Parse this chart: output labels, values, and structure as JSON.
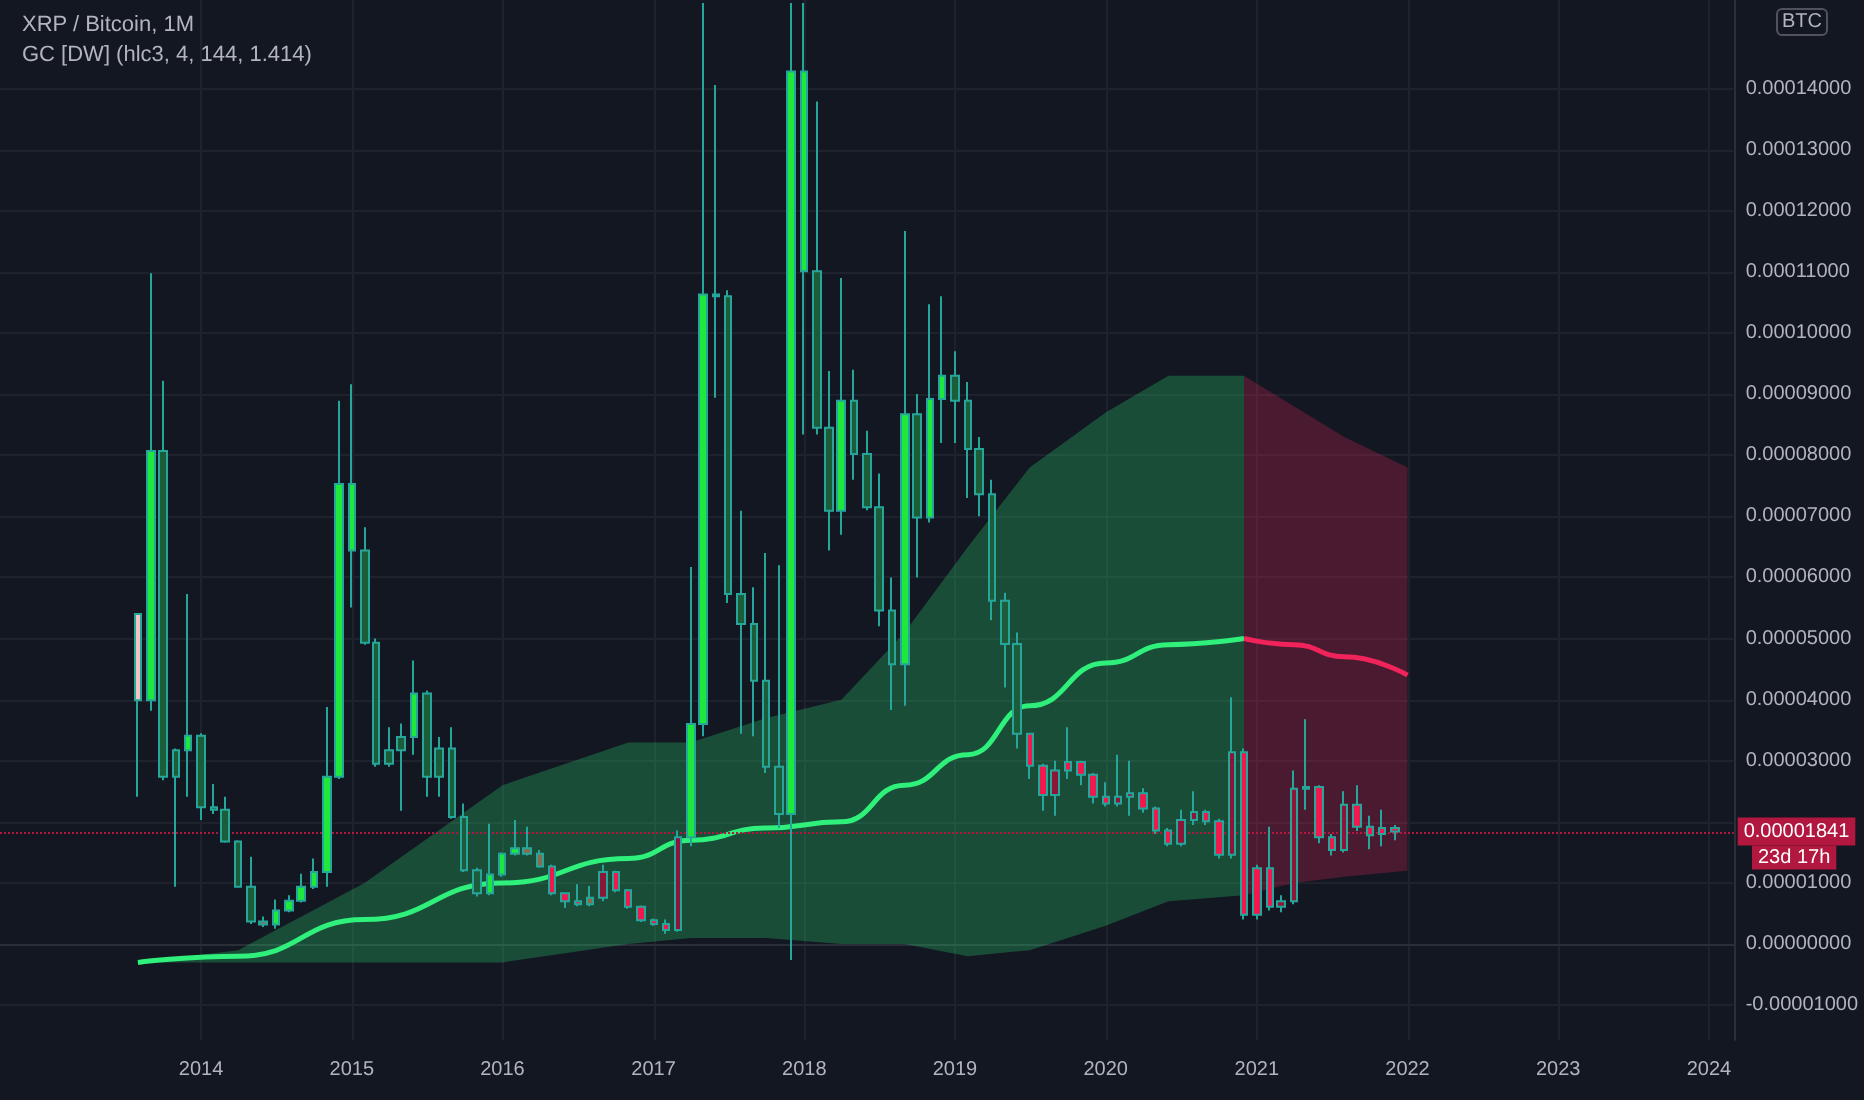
{
  "chart_data": {
    "type": "candlestick",
    "title": "XRP / Bitcoin, 1M",
    "subtitle": "GC [DW] (hlc3, 4, 144, 1.414)",
    "ylabel": "BTC",
    "x": [
      "2013-08",
      "2013-09",
      "2013-10",
      "2013-11",
      "2013-12",
      "2014-01",
      "2014-02",
      "2014-03",
      "2014-04",
      "2014-05",
      "2014-06",
      "2014-07",
      "2014-08",
      "2014-09",
      "2014-10",
      "2014-11",
      "2014-12",
      "2015-01",
      "2015-02",
      "2015-03",
      "2015-04",
      "2015-05",
      "2015-06",
      "2015-07",
      "2015-08",
      "2015-09",
      "2015-10",
      "2015-11",
      "2015-12",
      "2016-01",
      "2016-02",
      "2016-03",
      "2016-04",
      "2016-05",
      "2016-06",
      "2016-07",
      "2016-08",
      "2016-09",
      "2016-10",
      "2016-11",
      "2016-12",
      "2017-01",
      "2017-02",
      "2017-03",
      "2017-04",
      "2017-05",
      "2017-06",
      "2017-07",
      "2017-08",
      "2017-09",
      "2017-10",
      "2017-11",
      "2017-12",
      "2018-01",
      "2018-02",
      "2018-03",
      "2018-04",
      "2018-05",
      "2018-06",
      "2018-07",
      "2018-08",
      "2018-09",
      "2018-10",
      "2018-11",
      "2018-12",
      "2019-01",
      "2019-02",
      "2019-03",
      "2019-04",
      "2019-05",
      "2019-06",
      "2019-07",
      "2019-08",
      "2019-09",
      "2019-10",
      "2019-11",
      "2019-12",
      "2020-01",
      "2020-02",
      "2020-03",
      "2020-04",
      "2020-05",
      "2020-06",
      "2020-07",
      "2020-08",
      "2020-09",
      "2020-10",
      "2020-11",
      "2020-12",
      "2021-01",
      "2021-02",
      "2021-03",
      "2021-04",
      "2021-05",
      "2021-06",
      "2021-07",
      "2021-08",
      "2021-09",
      "2021-10",
      "2021-11",
      "2021-12"
    ],
    "ohlc": [
      [
        5.4e-05,
        5.42e-05,
        2.41e-05,
        3.99e-05
      ],
      [
        3.99e-05,
        0.0001098,
        3.82e-05,
        8.07e-05
      ],
      [
        8.07e-05,
        9.22e-05,
        2.68e-05,
        2.74e-05
      ],
      [
        3.17e-05,
        3.2e-05,
        9.4e-06,
        2.74e-05
      ],
      [
        3.17e-05,
        5.73e-05,
        2.41e-05,
        3.41e-05
      ],
      [
        3.41e-05,
        3.45e-05,
        2.03e-05,
        2.24e-05
      ],
      [
        2.24e-05,
        2.62e-05,
        2.13e-05,
        2.2e-05
      ],
      [
        2.2e-05,
        2.41e-05,
        1.66e-05,
        1.68e-05
      ],
      [
        1.68e-05,
        1.7e-05,
        9.2e-06,
        9.4e-06
      ],
      [
        9.4e-06,
        1.43e-05,
        3.3e-06,
        3.7e-06
      ],
      [
        3.7e-06,
        4.5e-06,
        2.8e-06,
        3.2e-06
      ],
      [
        3.2e-06,
        7.3e-06,
        2.5e-06,
        5.5e-06
      ],
      [
        5.5e-06,
        8e-06,
        5.2e-06,
        7.1e-06
      ],
      [
        7.1e-06,
        1.15e-05,
        6.8e-06,
        9.4e-06
      ],
      [
        9.4e-06,
        1.4e-05,
        9e-06,
        1.18e-05
      ],
      [
        1.18e-05,
        3.88e-05,
        9.4e-06,
        2.74e-05
      ],
      [
        2.74e-05,
        8.89e-05,
        2.7e-05,
        7.53e-05
      ],
      [
        6.44e-05,
        9.16e-05,
        5.51e-05,
        7.53e-05
      ],
      [
        6.44e-05,
        6.82e-05,
        4.9e-05,
        4.93e-05
      ],
      [
        4.93e-05,
        5e-05,
        2.9e-05,
        2.95e-05
      ],
      [
        3.17e-05,
        3.55e-05,
        2.9e-05,
        2.95e-05
      ],
      [
        3.39e-05,
        3.61e-05,
        2.18e-05,
        3.17e-05
      ],
      [
        3.39e-05,
        4.64e-05,
        3.1e-05,
        4.1e-05
      ],
      [
        4.1e-05,
        4.15e-05,
        2.41e-05,
        2.74e-05
      ],
      [
        3.2e-05,
        3.39e-05,
        2.41e-05,
        2.74e-05
      ],
      [
        3.2e-05,
        3.55e-05,
        2.05e-05,
        2.08e-05
      ],
      [
        2.08e-05,
        2.3e-05,
        1.18e-05,
        1.21e-05
      ],
      [
        1.21e-05,
        1.25e-05,
        7.8e-06,
        8.3e-06
      ],
      [
        8.3e-06,
        1.97e-05,
        8e-06,
        1.14e-05
      ],
      [
        1.14e-05,
        1.5e-05,
        1.1e-05,
        1.48e-05
      ],
      [
        1.48e-05,
        2.03e-05,
        1.45e-05,
        1.57e-05
      ],
      [
        1.57e-05,
        1.92e-05,
        1.45e-05,
        1.48e-05
      ],
      [
        1.48e-05,
        1.54e-05,
        1.25e-05,
        1.27e-05
      ],
      [
        1.27e-05,
        1.3e-05,
        8e-06,
        8.3e-06
      ],
      [
        8.3e-06,
        8.5e-06,
        5.9e-06,
        7e-06
      ],
      [
        7e-06,
        9.8e-06,
        6.2e-06,
        6.5e-06
      ],
      [
        7.6e-06,
        9.5e-06,
        6.2e-06,
        6.5e-06
      ],
      [
        7.6e-06,
        1.3e-05,
        7e-06,
        1.18e-05
      ],
      [
        1.18e-05,
        1.2e-05,
        8.5e-06,
        8.8e-06
      ],
      [
        8.8e-06,
        9e-06,
        5.8e-06,
        6.1e-06
      ],
      [
        6.1e-06,
        6.3e-06,
        3.6e-06,
        3.9e-06
      ],
      [
        3.9e-06,
        4.2e-06,
        3e-06,
        3.3e-06
      ],
      [
        3.3e-06,
        4e-06,
        1.7e-06,
        2.3e-06
      ],
      [
        2.3e-06,
        1.86e-05,
        2e-06,
        1.75e-05
      ],
      [
        1.75e-05,
        6.17e-05,
        1.6e-05,
        3.6e-05
      ],
      [
        3.6e-05,
        0.000154,
        3.4e-05,
        0.0001063
      ],
      [
        0.0001063,
        0.0001406,
        8.94e-05,
        0.000106
      ],
      [
        0.000106,
        0.000107,
        5.58e-05,
        5.73e-05
      ],
      [
        5.73e-05,
        7.09e-05,
        3.44e-05,
        5.24e-05
      ],
      [
        5.24e-05,
        5.84e-05,
        3.4e-05,
        4.31e-05
      ],
      [
        4.31e-05,
        6.4e-05,
        2.8e-05,
        2.9e-05
      ],
      [
        2.9e-05,
        6.2e-05,
        1.9e-05,
        2.13e-05
      ],
      [
        2.13e-05,
        0.000154,
        -2.6e-06,
        0.0001428
      ],
      [
        0.0001101,
        0.000154,
        8.34e-05,
        0.0001428
      ],
      [
        0.0001101,
        0.0001379,
        8.34e-05,
        8.45e-05
      ],
      [
        8.45e-05,
        9.38e-05,
        6.44e-05,
        7.09e-05
      ],
      [
        7.09e-05,
        0.000109,
        6.7e-05,
        8.89e-05
      ],
      [
        8.89e-05,
        9.4e-05,
        7.6e-05,
        8.02e-05
      ],
      [
        8.02e-05,
        8.4e-05,
        7.1e-05,
        7.15e-05
      ],
      [
        7.15e-05,
        7.7e-05,
        5.2e-05,
        5.46e-05
      ],
      [
        5.46e-05,
        6e-05,
        3.83e-05,
        4.58e-05
      ],
      [
        4.58e-05,
        0.0001167,
        3.9e-05,
        8.67e-05
      ],
      [
        8.67e-05,
        9e-05,
        6e-05,
        6.98e-05
      ],
      [
        6.98e-05,
        0.0001047,
        6.9e-05,
        8.92e-05
      ],
      [
        8.92e-05,
        0.000106,
        8.2e-05,
        9.3e-05
      ],
      [
        9.3e-05,
        9.7e-05,
        8.2e-05,
        8.89e-05
      ],
      [
        8.89e-05,
        9.2e-05,
        7.3e-05,
        8.1e-05
      ],
      [
        8.1e-05,
        8.3e-05,
        7e-05,
        7.36e-05
      ],
      [
        7.36e-05,
        7.6e-05,
        5.3e-05,
        5.62e-05
      ],
      [
        5.62e-05,
        5.75e-05,
        4.2e-05,
        4.91e-05
      ],
      [
        4.91e-05,
        5.1e-05,
        3.2e-05,
        3.44e-05
      ],
      [
        3.44e-05,
        3.44e-05,
        2.7e-05,
        2.92e-05
      ],
      [
        2.92e-05,
        2.95e-05,
        2.18e-05,
        2.44e-05
      ],
      [
        2.44e-05,
        3e-05,
        2.1e-05,
        2.84e-05
      ],
      [
        2.98e-05,
        3.55e-05,
        2.7e-05,
        2.84e-05
      ],
      [
        2.98e-05,
        3e-05,
        2.6e-05,
        2.77e-05
      ],
      [
        2.77e-05,
        2.8e-05,
        2.3e-05,
        2.41e-05
      ],
      [
        2.41e-05,
        2.65e-05,
        2.25e-05,
        2.3e-05
      ],
      [
        2.3e-05,
        3.1e-05,
        2.25e-05,
        2.41e-05
      ],
      [
        2.41e-05,
        3e-05,
        2.1e-05,
        2.47e-05
      ],
      [
        2.47e-05,
        2.55e-05,
        2.15e-05,
        2.22e-05
      ],
      [
        2.22e-05,
        2.25e-05,
        1.8e-05,
        1.86e-05
      ],
      [
        1.86e-05,
        1.9e-05,
        1.6e-05,
        1.64e-05
      ],
      [
        1.64e-05,
        2.2e-05,
        1.6e-05,
        2.03e-05
      ],
      [
        2.03e-05,
        2.5e-05,
        1.95e-05,
        2.16e-05
      ],
      [
        2.16e-05,
        2.2e-05,
        1.95e-05,
        2.01e-05
      ],
      [
        2.01e-05,
        2.05e-05,
        1.4e-05,
        1.46e-05
      ],
      [
        1.46e-05,
        4.04e-05,
        1.4e-05,
        3.14e-05
      ],
      [
        3.14e-05,
        3.2e-05,
        4e-06,
        4.8e-06
      ],
      [
        1.24e-05,
        1.3e-05,
        4e-06,
        4.8e-06
      ],
      [
        1.24e-05,
        1.92e-05,
        5.5e-06,
        6.1e-06
      ],
      [
        6.1e-06,
        8e-06,
        5.2e-06,
        7e-06
      ],
      [
        7e-06,
        2.84e-05,
        6.5e-06,
        2.54e-05
      ],
      [
        2.54e-05,
        3.68e-05,
        2.2e-05,
        2.57e-05
      ],
      [
        2.57e-05,
        2.6e-05,
        1.65e-05,
        1.75e-05
      ],
      [
        1.75e-05,
        1.8e-05,
        1.45e-05,
        1.54e-05
      ],
      [
        1.54e-05,
        2.5e-05,
        1.5e-05,
        2.28e-05
      ],
      [
        2.28e-05,
        2.6e-05,
        1.85e-05,
        1.92e-05
      ],
      [
        1.92e-05,
        2.1e-05,
        1.55e-05,
        1.78e-05
      ],
      [
        1.9e-05,
        2.2e-05,
        1.6e-05,
        1.8e-05
      ],
      [
        1.9e-05,
        1.95e-05,
        1.7e-05,
        1.841e-05
      ]
    ],
    "colors": [
      "#f2c4c4",
      "#1ee83c",
      "#1d5c38",
      "#1d5c38",
      "#1ee83c",
      "#1d5c38",
      "#1d5c38",
      "#1d5c38",
      "#1d5c38",
      "#1d5c38",
      "#8a6a4a",
      "#1ee83c",
      "#1ee83c",
      "#1ee83c",
      "#1ee83c",
      "#1ee83c",
      "#1ee83c",
      "#1ee83c",
      "#1d5c38",
      "#1d5c38",
      "#1d5c38",
      "#1d5c38",
      "#1ee83c",
      "#1d5c38",
      "#1d5c38",
      "#1d5c38",
      "#1d5c38",
      "#1d5c38",
      "#1ee83c",
      "#1ee83c",
      "#1ee83c",
      "#8a6a4a",
      "#8a6a4a",
      "#f0184c",
      "#f0184c",
      "#f0184c",
      "#8a6a4a",
      "#8c1538",
      "#f0184c",
      "#f0184c",
      "#f0184c",
      "#f0184c",
      "#f0184c",
      "#8c1538",
      "#1ee83c",
      "#1ee83c",
      "#1d5c38",
      "#1d5c38",
      "#1d5c38",
      "#1d5c38",
      "#1d5c38",
      "#1d5c38",
      "#1ee83c",
      "#1ee83c",
      "#1d5c38",
      "#1d5c38",
      "#1ee83c",
      "#1d5c38",
      "#1d5c38",
      "#1d5c38",
      "#1d5c38",
      "#1ee83c",
      "#1d5c38",
      "#1ee83c",
      "#1ee83c",
      "#1d5c38",
      "#1d5c38",
      "#1d5c38",
      "#1d5c38",
      "#1d5c38",
      "#1d5c38",
      "#f0184c",
      "#f0184c",
      "#8c1538",
      "#f0184c",
      "#f0184c",
      "#f0184c",
      "#f0184c",
      "#8c1538",
      "#8c1538",
      "#f0184c",
      "#f0184c",
      "#f0184c",
      "#8c1538",
      "#8c1538",
      "#f0184c",
      "#f0184c",
      "#8c1538",
      "#f0184c",
      "#f0184c",
      "#f0184c",
      "#8c1538",
      "#8c1538",
      "#8c1538",
      "#f0184c",
      "#f0184c",
      "#8c1538",
      "#f0184c",
      "#f0184c",
      "#f0184c",
      "#f0184c"
    ],
    "series": [
      {
        "type": "line",
        "color": "#2ef07a",
        "x": [
          "2013-08",
          "2014-04",
          "2015-02",
          "2016-01",
          "2016-11",
          "2017-04",
          "2017-10",
          "2018-04",
          "2018-09",
          "2019-02",
          "2019-07",
          "2020-01",
          "2020-06",
          "2020-12"
        ],
        "values": [
          -3e-06,
          -2e-06,
          4e-06,
          1e-05,
          1.4e-05,
          1.7e-05,
          1.9e-05,
          2e-05,
          2.6e-05,
          3.1e-05,
          3.9e-05,
          4.6e-05,
          4.9e-05,
          5e-05
        ],
        "lower": [
          -3e-06,
          -3e-06,
          -3e-06,
          -3e-06,
          0,
          1e-06,
          1e-06,
          0,
          0,
          -2e-06,
          -1e-06,
          3e-06,
          7e-06,
          8e-06
        ],
        "upper": [
          -3e-06,
          -1e-06,
          1e-05,
          2.6e-05,
          3.3e-05,
          3.3e-05,
          3.7e-05,
          4e-05,
          5.1e-05,
          6.5e-05,
          7.8e-05,
          8.7e-05,
          9.3e-05,
          9.3e-05
        ]
      },
      {
        "type": "line",
        "color": "#f0245a",
        "x": [
          "2020-12",
          "2021-04",
          "2021-08",
          "2022-01"
        ],
        "values": [
          5e-05,
          4.9e-05,
          4.7e-05,
          4.4e-05
        ],
        "lower": [
          8e-06,
          1e-05,
          1.1e-05,
          1.2e-05
        ],
        "upper": [
          9.3e-05,
          8.8e-05,
          8.3e-05,
          7.8e-05
        ]
      }
    ],
    "xlim": [
      "2012-09",
      "2024-03"
    ],
    "xticks": [
      "2014",
      "2015",
      "2016",
      "2017",
      "2018",
      "2019",
      "2020",
      "2021",
      "2022",
      "2023",
      "2024"
    ],
    "ylim": [
      -1.57e-05,
      0.0001545
    ],
    "yticks": [
      {
        "value": -1e-05,
        "label": "-0.00001000"
      },
      {
        "value": 0,
        "label": "0.00000000"
      },
      {
        "value": 1e-05,
        "label": "0.00001000"
      },
      {
        "value": 2e-05,
        "label": null
      },
      {
        "value": 3e-05,
        "label": "0.00003000"
      },
      {
        "value": 4e-05,
        "label": "0.00004000"
      },
      {
        "value": 5e-05,
        "label": "0.00005000"
      },
      {
        "value": 6e-05,
        "label": "0.00006000"
      },
      {
        "value": 7e-05,
        "label": "0.00007000"
      },
      {
        "value": 8e-05,
        "label": "0.00008000"
      },
      {
        "value": 9e-05,
        "label": "0.00009000"
      },
      {
        "value": 0.0001,
        "label": "0.00010000"
      },
      {
        "value": 0.00011,
        "label": "0.00011000"
      },
      {
        "value": 0.00012,
        "label": "0.00012000"
      },
      {
        "value": 0.00013,
        "label": "0.00013000"
      },
      {
        "value": 0.00014,
        "label": "0.00014000"
      }
    ],
    "ref_lines": [
      {
        "axis": "y",
        "value": 1.841e-05,
        "label": "0.00001841",
        "color": "#b2173f",
        "line_style": "dotted"
      }
    ],
    "annotations": [
      "23d 17h"
    ],
    "grid": true,
    "marker": "none"
  }
}
